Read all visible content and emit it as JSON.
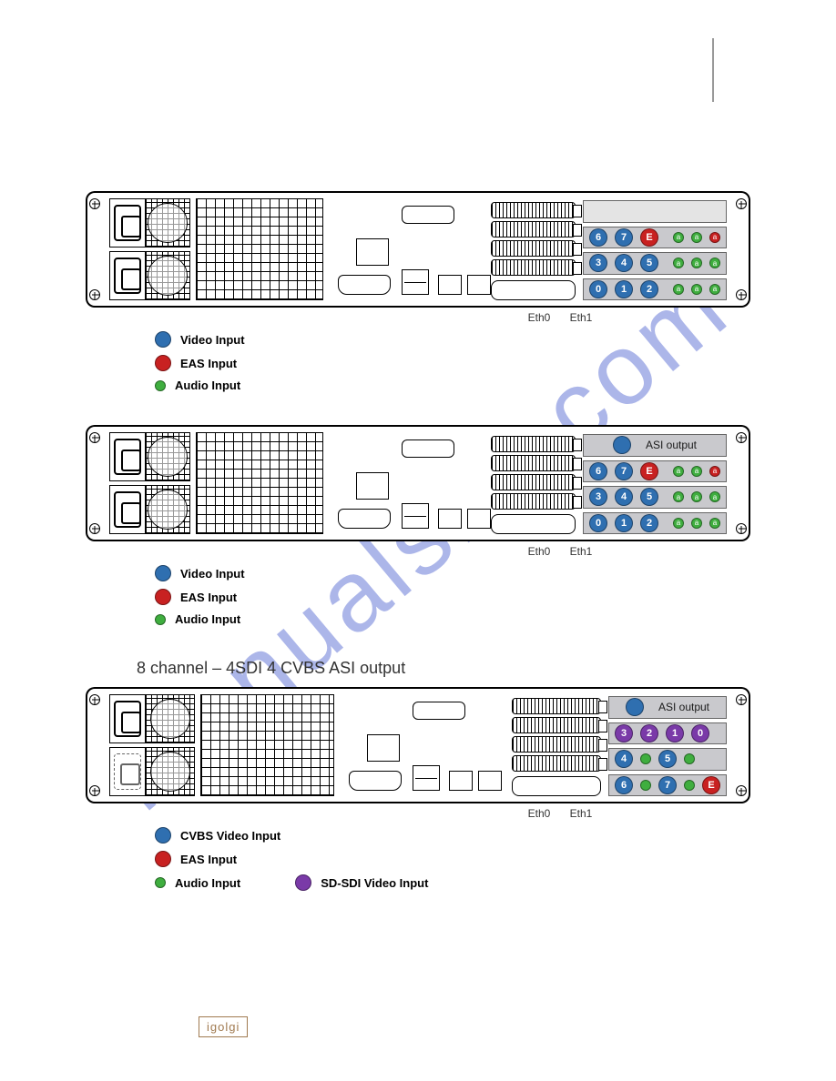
{
  "watermark": "manualslib.com",
  "colors": {
    "video_blue": "#2f6fb0",
    "eas_red": "#c82121",
    "audio_green": "#3fae3f",
    "sdi_purple": "#7a3aa8",
    "card_bg": "#c9c9cd",
    "text": "#333333"
  },
  "eth": {
    "eth0": "Eth0",
    "eth1": "Eth1"
  },
  "diagrams": [
    {
      "id": "d1",
      "title": "",
      "psu": "dual",
      "asi_slot": false,
      "card_slots": [
        {
          "big": [
            {
              "n": "6",
              "c": "video_blue"
            },
            {
              "n": "7",
              "c": "video_blue"
            },
            {
              "n": "E",
              "c": "eas_red"
            }
          ],
          "small": [
            {
              "t": "a",
              "c": "audio_green"
            },
            {
              "t": "a",
              "c": "audio_green"
            },
            {
              "t": "a",
              "c": "eas_red"
            }
          ]
        },
        {
          "big": [
            {
              "n": "3",
              "c": "video_blue"
            },
            {
              "n": "4",
              "c": "video_blue"
            },
            {
              "n": "5",
              "c": "video_blue"
            }
          ],
          "small": [
            {
              "t": "a",
              "c": "audio_green"
            },
            {
              "t": "a",
              "c": "audio_green"
            },
            {
              "t": "a",
              "c": "audio_green"
            }
          ]
        },
        {
          "big": [
            {
              "n": "0",
              "c": "video_blue"
            },
            {
              "n": "1",
              "c": "video_blue"
            },
            {
              "n": "2",
              "c": "video_blue"
            }
          ],
          "small": [
            {
              "t": "a",
              "c": "audio_green"
            },
            {
              "t": "a",
              "c": "audio_green"
            },
            {
              "t": "a",
              "c": "audio_green"
            }
          ]
        }
      ],
      "legend": [
        {
          "color": "video_blue",
          "size": "big",
          "label": "Video Input"
        },
        {
          "color": "eas_red",
          "size": "big",
          "label": "EAS Input"
        },
        {
          "color": "audio_green",
          "size": "small",
          "label": "Audio Input"
        }
      ]
    },
    {
      "id": "d2",
      "title": "",
      "psu": "dual",
      "asi_slot": true,
      "asi_label": "ASI output",
      "card_slots": [
        {
          "big": [
            {
              "n": "6",
              "c": "video_blue"
            },
            {
              "n": "7",
              "c": "video_blue"
            },
            {
              "n": "E",
              "c": "eas_red"
            }
          ],
          "small": [
            {
              "t": "a",
              "c": "audio_green"
            },
            {
              "t": "a",
              "c": "audio_green"
            },
            {
              "t": "a",
              "c": "eas_red"
            }
          ]
        },
        {
          "big": [
            {
              "n": "3",
              "c": "video_blue"
            },
            {
              "n": "4",
              "c": "video_blue"
            },
            {
              "n": "5",
              "c": "video_blue"
            }
          ],
          "small": [
            {
              "t": "a",
              "c": "audio_green"
            },
            {
              "t": "a",
              "c": "audio_green"
            },
            {
              "t": "a",
              "c": "audio_green"
            }
          ]
        },
        {
          "big": [
            {
              "n": "0",
              "c": "video_blue"
            },
            {
              "n": "1",
              "c": "video_blue"
            },
            {
              "n": "2",
              "c": "video_blue"
            }
          ],
          "small": [
            {
              "t": "a",
              "c": "audio_green"
            },
            {
              "t": "a",
              "c": "audio_green"
            },
            {
              "t": "a",
              "c": "audio_green"
            }
          ]
        }
      ],
      "legend": [
        {
          "color": "video_blue",
          "size": "big",
          "label": "Video Input"
        },
        {
          "color": "eas_red",
          "size": "big",
          "label": "EAS Input"
        },
        {
          "color": "audio_green",
          "size": "small",
          "label": "Audio Input"
        }
      ]
    },
    {
      "id": "d3",
      "title": "8 channel – 4SDI 4 CVBS   ASI output",
      "psu": "single",
      "asi_slot": true,
      "asi_label": "ASI output",
      "card_slots": [
        {
          "big": [
            {
              "n": "3",
              "c": "sdi_purple"
            },
            {
              "n": "2",
              "c": "sdi_purple"
            },
            {
              "n": "1",
              "c": "sdi_purple"
            },
            {
              "n": "0",
              "c": "sdi_purple"
            }
          ],
          "small": []
        },
        {
          "big": [
            {
              "n": "4",
              "c": "video_blue"
            },
            {
              "n": "",
              "c": "audio_green",
              "sm": true
            },
            {
              "n": "5",
              "c": "video_blue"
            },
            {
              "n": "",
              "c": "audio_green",
              "sm": true
            }
          ],
          "small": []
        },
        {
          "big": [
            {
              "n": "6",
              "c": "video_blue"
            },
            {
              "n": "",
              "c": "audio_green",
              "sm": true
            },
            {
              "n": "7",
              "c": "video_blue"
            },
            {
              "n": "",
              "c": "audio_green",
              "sm": true
            },
            {
              "n": "E",
              "c": "eas_red"
            }
          ],
          "small": []
        }
      ],
      "legend": [
        {
          "color": "video_blue",
          "size": "big",
          "label": "CVBS Video Input"
        },
        {
          "color": "eas_red",
          "size": "big",
          "label": "EAS Input"
        },
        {
          "color": "audio_green",
          "size": "small",
          "label": "Audio Input",
          "extra": {
            "color": "sdi_purple",
            "size": "big",
            "label": "SD-SDI Video Input"
          }
        }
      ]
    }
  ],
  "footer_logo": "igolgi"
}
